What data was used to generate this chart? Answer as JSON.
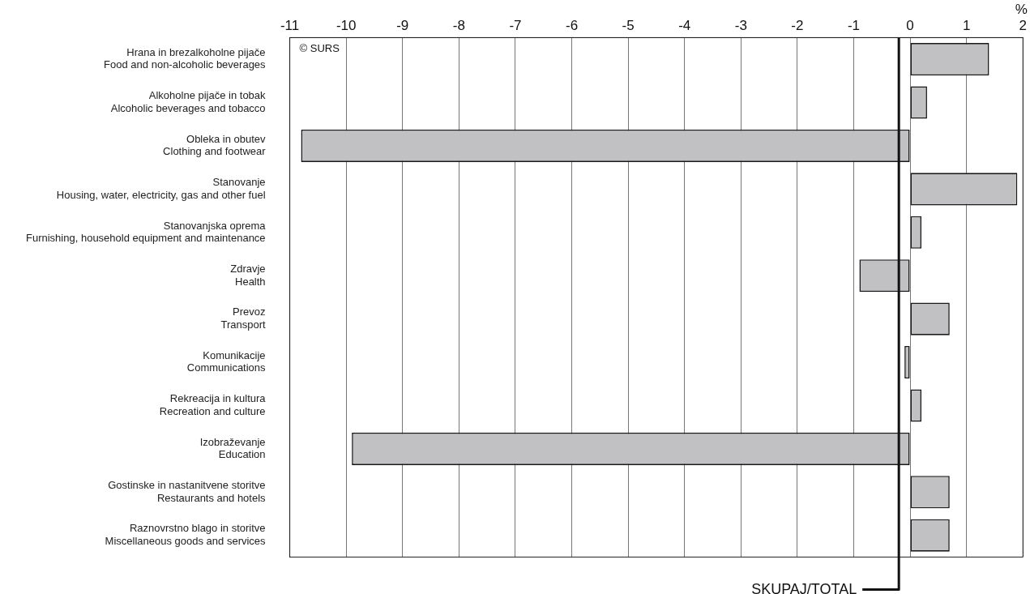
{
  "chart_data": {
    "type": "bar",
    "orientation": "horizontal",
    "xlabel": "%",
    "categories": [
      "Hrana in brezalkoholne pijače\nFood and non-alcoholic beverages",
      "Alkoholne pijače in tobak\nAlcoholic beverages and tobacco",
      "Obleka in obutev\nClothing and footwear",
      "Stanovanje\nHousing, water, electricity, gas and other fuel",
      "Stanovanjska oprema\nFurnishing, household equipment and maintenance",
      "Zdravje\nHealth",
      "Prevoz\nTransport",
      "Komunikacije\nCommunications",
      "Rekreacija in kultura\nRecreation and culture",
      "Izobraževanje\nEducation",
      "Gostinske in nastanitvene storitve\nRestaurants and hotels",
      "Raznovrstno blago in storitve\nMiscellaneous goods and services"
    ],
    "values": [
      1.4,
      0.3,
      -10.8,
      1.9,
      0.2,
      -0.9,
      0.7,
      -0.1,
      0.2,
      -9.9,
      0.7,
      0.7
    ],
    "color": "#c1c1c4",
    "xlim": [
      -11,
      2
    ],
    "xticks": [
      -11,
      -10,
      -9,
      -8,
      -7,
      -6,
      -5,
      -4,
      -3,
      -2,
      -1,
      0,
      1,
      2
    ],
    "grid": "x",
    "legend": false,
    "ref_lines": [
      {
        "axis": "x",
        "value": -0.2,
        "label": "SKUPAJ/TOTAL",
        "color": "#111111"
      }
    ],
    "annotations": [
      "© SURS"
    ]
  }
}
